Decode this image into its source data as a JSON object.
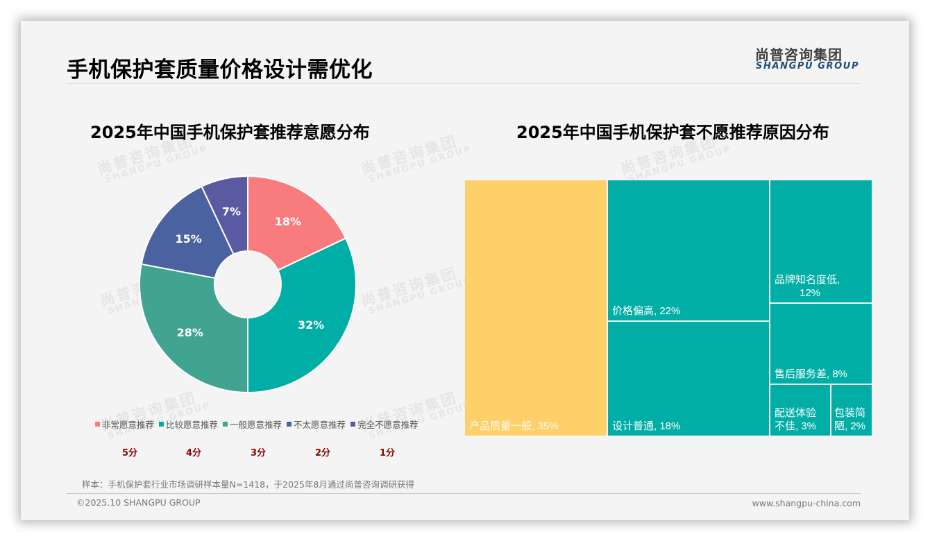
{
  "header": {
    "title": "手机保护套质量价格设计需优化",
    "logo_cn": "尚普咨询集团",
    "logo_en": "SHANGPU GROUP"
  },
  "watermark": {
    "cn": "尚普咨询集团",
    "en": "SHANGPU GROUP"
  },
  "left_chart": {
    "title": "2025年中国手机保护套推荐意愿分布",
    "legend": [
      {
        "label": "非常愿意推荐",
        "color": "#F87C7E"
      },
      {
        "label": "比较愿意推荐",
        "color": "#00AEA6"
      },
      {
        "label": "一般愿意推荐",
        "color": "#41A491"
      },
      {
        "label": "不太愿意推荐",
        "color": "#4A63A0"
      },
      {
        "label": "完全不愿意推荐",
        "color": "#5A5AA2"
      }
    ],
    "scores": [
      "5分",
      "4分",
      "3分",
      "2分",
      "1分"
    ]
  },
  "right_chart": {
    "title": "2025年中国手机保护套不愿推荐原因分布"
  },
  "chart_data": [
    {
      "type": "pie",
      "donut": true,
      "title": "2025年中国手机保护套推荐意愿分布",
      "categories": [
        "非常愿意推荐",
        "比较愿意推荐",
        "一般愿意推荐",
        "不太愿意推荐",
        "完全不愿意推荐"
      ],
      "values": [
        18,
        32,
        28,
        15,
        7
      ],
      "labels": [
        "18%",
        "32%",
        "28%",
        "15%",
        "7%"
      ],
      "colors": [
        "#F87C7E",
        "#00AEA6",
        "#41A491",
        "#4A63A0",
        "#5A5AA2"
      ],
      "score_labels": [
        "5分",
        "4分",
        "3分",
        "2分",
        "1分"
      ],
      "legend_position": "bottom"
    },
    {
      "type": "treemap",
      "title": "2025年中国手机保护套不愿推荐原因分布",
      "categories": [
        "产品质量一般",
        "价格偏高",
        "设计普通",
        "品牌知名度低",
        "售后服务差",
        "配送体验不佳",
        "包装简陋"
      ],
      "values": [
        35,
        22,
        18,
        12,
        8,
        3,
        2
      ],
      "labels": [
        "产品质量一般, 35%",
        "价格偏高, 22%",
        "设计普通, 18%",
        "品牌知名度低, 12%",
        "售后服务差, 8%",
        "配送体验不佳, 3%",
        "包装简陋, 2%"
      ],
      "colors": [
        "#FDD06A",
        "#00AEA6",
        "#00AEA6",
        "#00AEA6",
        "#00AEA6",
        "#00AEA6",
        "#00AEA6"
      ]
    }
  ],
  "treemap_cells": [
    {
      "label_line1": "产品质量一般, 35%",
      "label_line2": "",
      "color": "#FDD06A"
    },
    {
      "label_line1": "价格偏高, 22%",
      "label_line2": "",
      "color": "#00AEA6"
    },
    {
      "label_line1": "设计普通, 18%",
      "label_line2": "",
      "color": "#00AEA6"
    },
    {
      "label_line1": "品牌知名度低,",
      "label_line2": "12%",
      "color": "#00AEA6"
    },
    {
      "label_line1": "售后服务差, 8%",
      "label_line2": "",
      "color": "#00AEA6"
    },
    {
      "label_line1": "配送体验",
      "label_line2": "不佳, 3%",
      "color": "#00AEA6"
    },
    {
      "label_line1": "包装简",
      "label_line2": "陋, 2%",
      "color": "#00AEA6"
    }
  ],
  "footer": {
    "note": "样本：手机保护套行业市场调研样本量N=1418，于2025年8月通过尚普咨询调研获得",
    "copyright": "©2025.10 SHANGPU GROUP",
    "website": "www.shangpu-china.com"
  }
}
